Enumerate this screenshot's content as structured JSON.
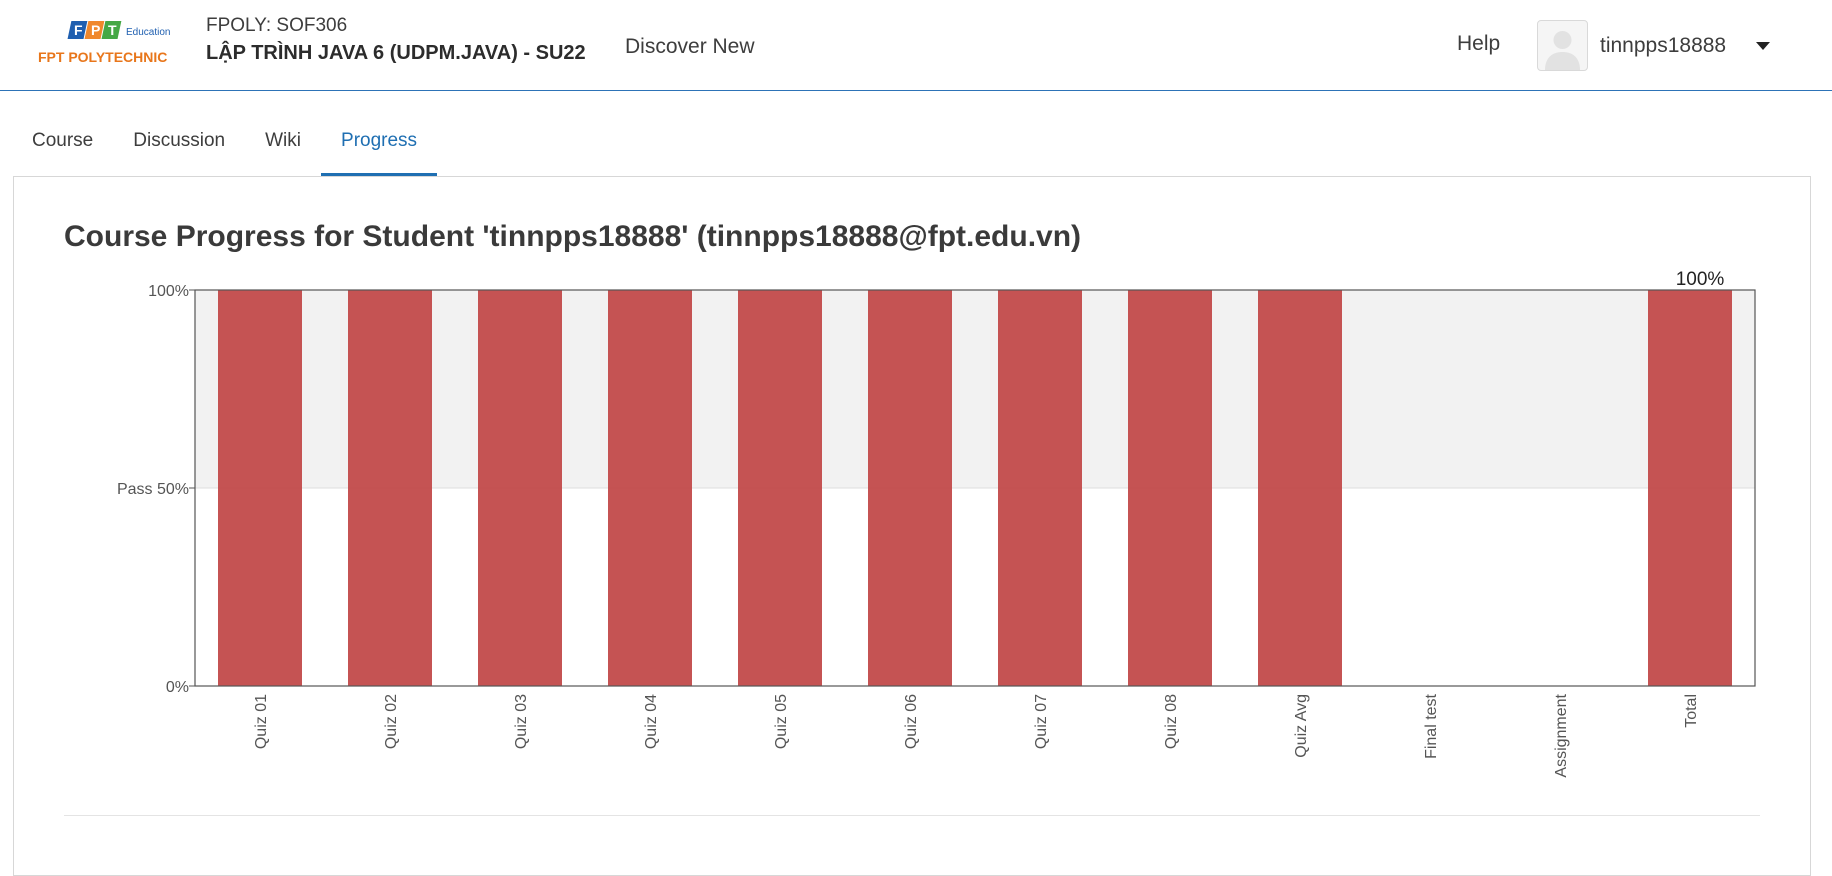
{
  "header": {
    "logo": {
      "brand": "FPT",
      "sub": "Education",
      "name": "FPT POLYTECHNIC"
    },
    "course_org": "FPOLY: SOF306",
    "course_title": "LẬP TRÌNH JAVA 6 (UDPM.JAVA) - SU22",
    "discover": "Discover New",
    "help": "Help",
    "username": "tinnpps18888"
  },
  "tabs": [
    {
      "label": "Course",
      "active": false
    },
    {
      "label": "Discussion",
      "active": false
    },
    {
      "label": "Wiki",
      "active": false
    },
    {
      "label": "Progress",
      "active": true
    }
  ],
  "page_title": "Course Progress for Student 'tinnpps18888' (tinnpps18888@fpt.edu.vn)",
  "colors": {
    "accent": "#1f6fb2",
    "bar": "#c24a4a",
    "pass_band": "#f2f2f2"
  },
  "chart_data": {
    "type": "bar",
    "categories": [
      "Quiz 01",
      "Quiz 02",
      "Quiz 03",
      "Quiz 04",
      "Quiz 05",
      "Quiz 06",
      "Quiz 07",
      "Quiz 08",
      "Quiz Avg",
      "Final test",
      "Assignment",
      "Total"
    ],
    "values": [
      100,
      100,
      100,
      100,
      100,
      100,
      100,
      100,
      100,
      0,
      0,
      100
    ],
    "ytick_labels": [
      {
        "value": 100,
        "label": "100%"
      },
      {
        "value": 50,
        "label": "Pass 50%"
      },
      {
        "value": 0,
        "label": "0%"
      }
    ],
    "ylim": [
      0,
      100
    ],
    "pass_line": 50,
    "data_labels": [
      {
        "category": "Total",
        "label": "100%"
      }
    ],
    "grid": false
  }
}
